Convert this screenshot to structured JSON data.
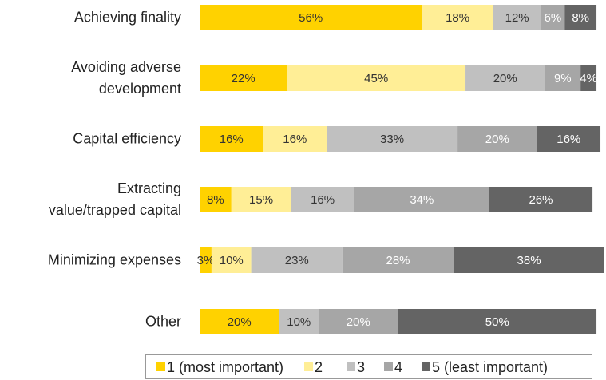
{
  "chart_data": {
    "type": "stacked_barh",
    "categories": [
      "Achieving finality",
      "Avoiding adverse\ndevelopment",
      "Capital efficiency",
      "Extracting\nvalue/trapped capital",
      "Minimizing expenses",
      "Other"
    ],
    "series": [
      {
        "name": "1 (most important)",
        "color": "#FFD200",
        "label_color": "#333333",
        "values": [
          56,
          22,
          16,
          8,
          3,
          20
        ],
        "value_labels": [
          "56%",
          "22%",
          "16%",
          "8%",
          "3%",
          "20%"
        ]
      },
      {
        "name": "2",
        "color": "#FFEE96",
        "label_color": "#333333",
        "values": [
          18,
          45,
          16,
          15,
          10,
          null
        ],
        "value_labels": [
          "18%",
          "45%",
          "16%",
          "15%",
          "10%",
          null
        ]
      },
      {
        "name": "3",
        "color": "#C0C0C0",
        "label_color": "#333333",
        "values": [
          12,
          20,
          33,
          16,
          23,
          10
        ],
        "value_labels": [
          "12%",
          "20%",
          "33%",
          "16%",
          "23%",
          "10%"
        ]
      },
      {
        "name": "4",
        "color": "#A6A6A6",
        "label_color": "#FFFFFF",
        "values": [
          6,
          9,
          20,
          34,
          28,
          20
        ],
        "value_labels": [
          "6%",
          "9%",
          "20%",
          "34%",
          "28%",
          "20%"
        ]
      },
      {
        "name": "5 (least important)",
        "color": "#646464",
        "label_color": "#FFFFFF",
        "values": [
          8,
          4,
          16,
          26,
          38,
          50
        ],
        "value_labels": [
          "8%",
          "4%",
          "16%",
          "26%",
          "38%",
          "50%"
        ]
      }
    ],
    "xlim": [
      0,
      102
    ],
    "legend": "bottom"
  }
}
